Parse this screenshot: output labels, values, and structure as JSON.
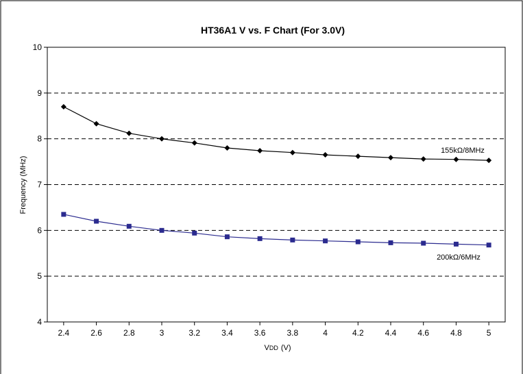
{
  "chart_data": {
    "type": "line",
    "title": "HT36A1 V vs. F Chart (For 3.0V)",
    "xlabel": "V",
    "xlabel_sub": "DD",
    "xlabel_unit": "(V)",
    "ylabel": "Frequency (MHz)",
    "x": [
      2.4,
      2.6,
      2.8,
      3,
      3.2,
      3.4,
      3.6,
      3.8,
      4,
      4.2,
      4.4,
      4.6,
      4.8,
      5
    ],
    "x_tick_labels": [
      "2.4",
      "2.6",
      "2.8",
      "3",
      "3.2",
      "3.4",
      "3.6",
      "3.8",
      "4",
      "4.2",
      "4.4",
      "4.6",
      "4.8",
      "5"
    ],
    "y_tick_labels": [
      "4",
      "5",
      "6",
      "7",
      "8",
      "9",
      "10"
    ],
    "xlim": [
      2.3,
      5.1
    ],
    "ylim": [
      4,
      10
    ],
    "grid": "horizontal dashed",
    "legend": "none",
    "series": [
      {
        "name": "155kΩ/8MHz",
        "marker": "diamond",
        "color": "#000000",
        "values": [
          8.7,
          8.33,
          8.12,
          8.0,
          7.91,
          7.8,
          7.74,
          7.7,
          7.65,
          7.62,
          7.59,
          7.56,
          7.55,
          7.53
        ]
      },
      {
        "name": "200kΩ/6MHz",
        "marker": "square",
        "color": "#2b2b8f",
        "values": [
          6.35,
          6.2,
          6.09,
          6.0,
          5.94,
          5.86,
          5.82,
          5.79,
          5.77,
          5.75,
          5.73,
          5.72,
          5.7,
          5.68
        ]
      }
    ]
  }
}
